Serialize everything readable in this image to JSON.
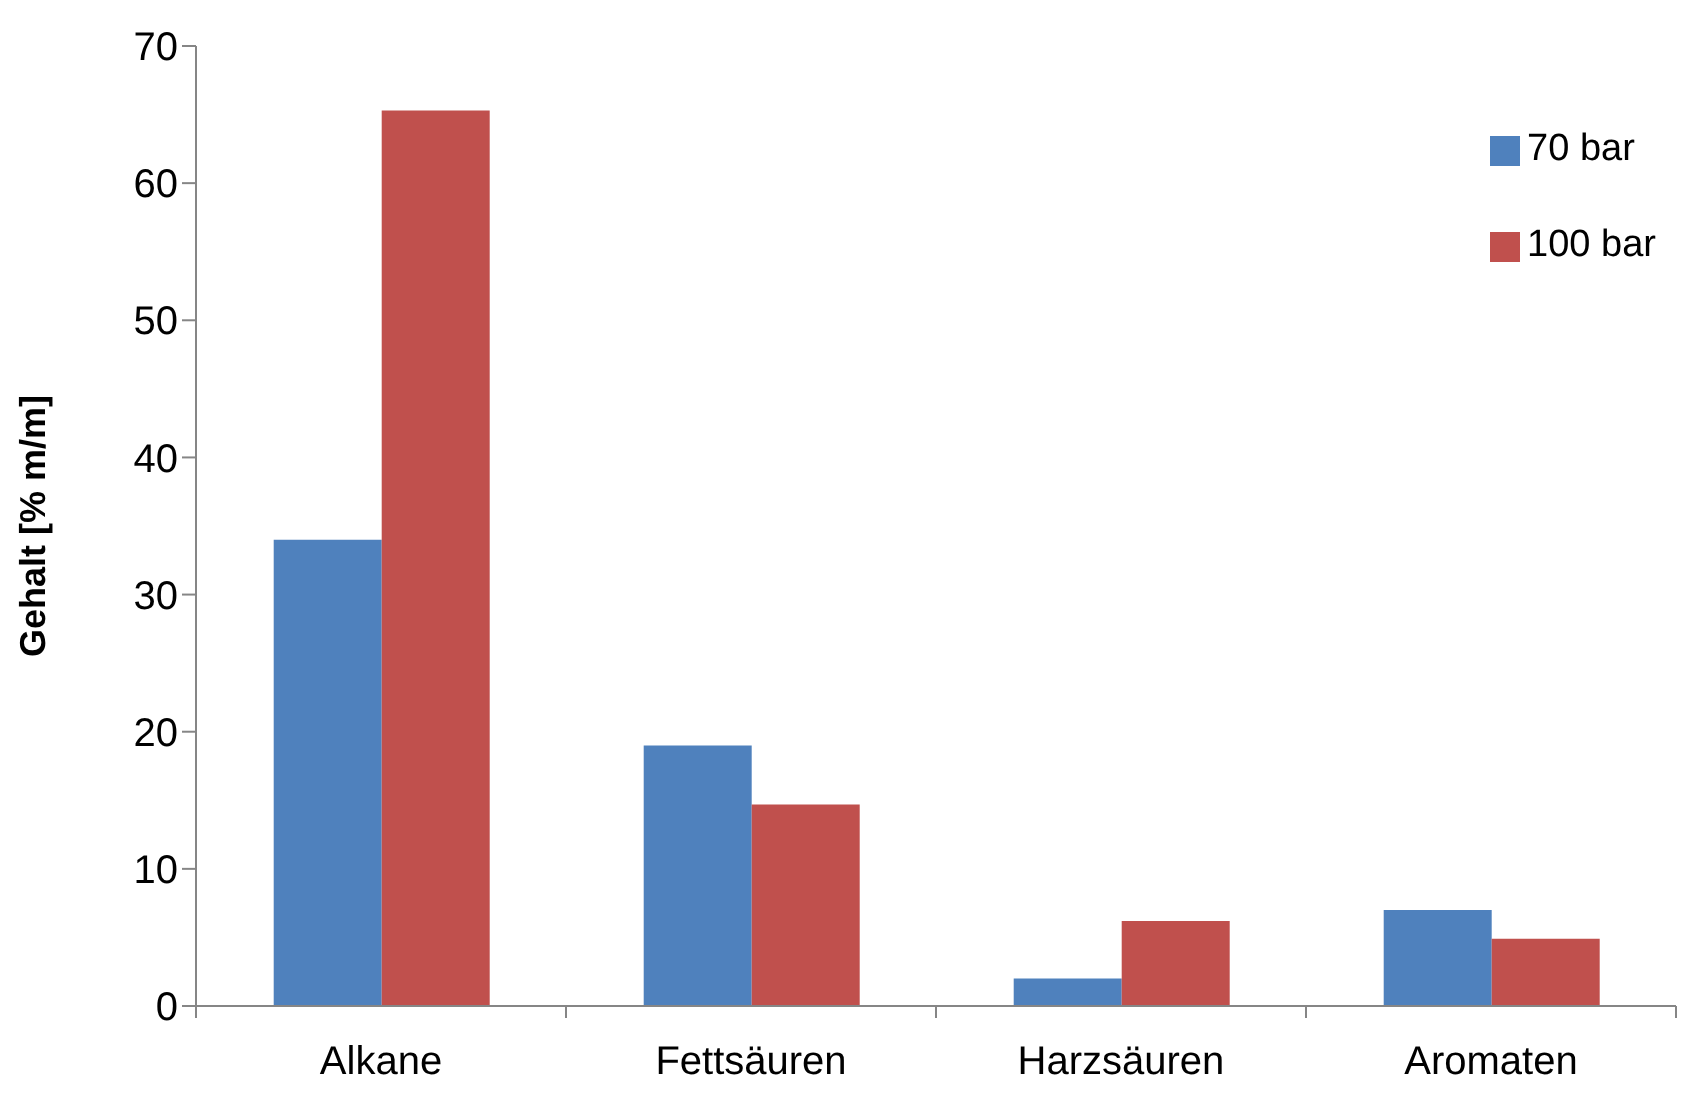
{
  "chart_data": {
    "type": "bar",
    "ylabel": "Gehalt [% m/m]",
    "categories": [
      "Alkane",
      "Fettsäuren",
      "Harzsäuren",
      "Aromaten"
    ],
    "series": [
      {
        "name": "70 bar",
        "color": "#4f81bd",
        "values": [
          34,
          19,
          2,
          7
        ]
      },
      {
        "name": "100 bar",
        "color": "#c0504d",
        "values": [
          65.3,
          14.7,
          6.2,
          4.9
        ]
      }
    ],
    "ylim": [
      0,
      70
    ],
    "yticks": [
      0,
      10,
      20,
      30,
      40,
      50,
      60,
      70
    ],
    "legend": "top right",
    "grid": false
  }
}
